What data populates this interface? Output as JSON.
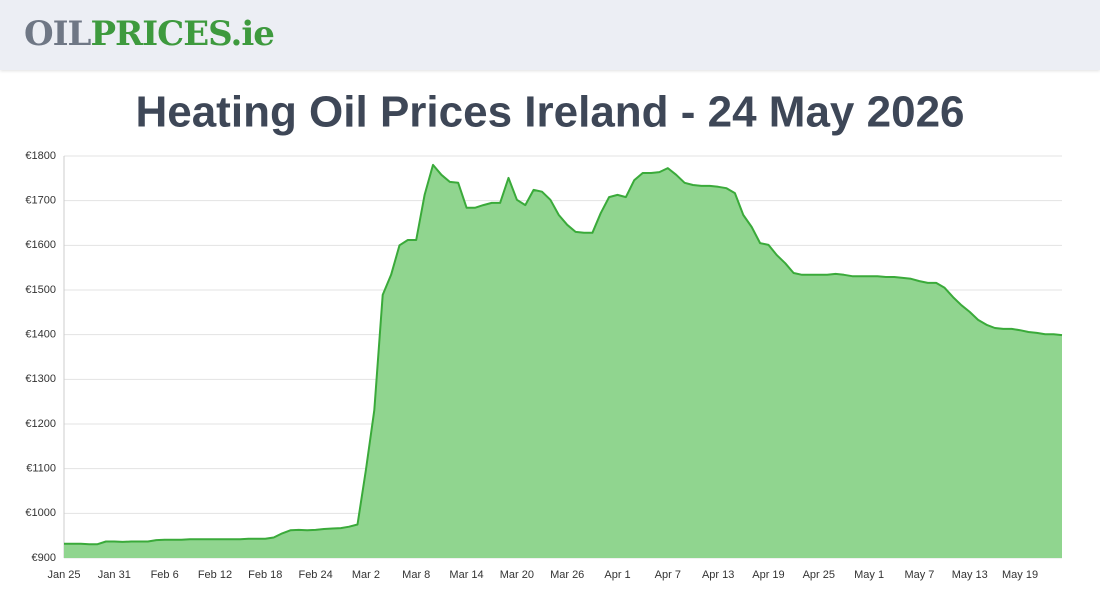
{
  "header": {
    "logo": [
      "OIL",
      "PRICES.ie"
    ]
  },
  "chart_data": {
    "type": "area",
    "title": "Heating Oil Prices Ireland - 24 May 2026",
    "categories": [
      "Jan 25",
      null,
      null,
      null,
      null,
      null,
      "Jan 31",
      null,
      null,
      null,
      null,
      null,
      "Feb 6",
      null,
      null,
      null,
      null,
      null,
      "Feb 12",
      null,
      null,
      null,
      null,
      null,
      "Feb 18",
      null,
      null,
      null,
      null,
      null,
      "Feb 24",
      null,
      null,
      null,
      null,
      null,
      "Mar 2",
      null,
      null,
      null,
      null,
      null,
      "Mar 8",
      null,
      null,
      null,
      null,
      null,
      "Mar 14",
      null,
      null,
      null,
      null,
      null,
      "Mar 20",
      null,
      null,
      null,
      null,
      null,
      "Mar 26",
      null,
      null,
      null,
      null,
      null,
      "Apr 1",
      null,
      null,
      null,
      null,
      null,
      "Apr 7",
      null,
      null,
      null,
      null,
      null,
      "Apr 13",
      null,
      null,
      null,
      null,
      null,
      "Apr 19",
      null,
      null,
      null,
      null,
      null,
      "Apr 25",
      null,
      null,
      null,
      null,
      null,
      "May 1",
      null,
      null,
      null,
      null,
      null,
      "May 7",
      null,
      null,
      null,
      null,
      null,
      "May 13",
      null,
      null,
      null,
      null,
      null,
      "May 19",
      null,
      null,
      null,
      null,
      null
    ],
    "values": [
      932,
      932,
      932,
      931,
      931,
      937,
      937,
      936,
      937,
      937,
      937,
      940,
      941,
      941,
      941,
      942,
      942,
      942,
      942,
      942,
      942,
      942,
      943,
      943,
      943,
      946,
      955,
      962,
      963,
      962,
      963,
      965,
      966,
      967,
      970,
      975,
      1097,
      1231,
      1489,
      1534,
      1600,
      1612,
      1612,
      1713,
      1780,
      1758,
      1742,
      1740,
      1684,
      1684,
      1690,
      1695,
      1695,
      1751,
      1702,
      1690,
      1724,
      1720,
      1702,
      1668,
      1646,
      1630,
      1628,
      1628,
      1672,
      1708,
      1713,
      1708,
      1746,
      1762,
      1762,
      1764,
      1773,
      1758,
      1740,
      1735,
      1733,
      1733,
      1731,
      1728,
      1717,
      1668,
      1641,
      1605,
      1601,
      1578,
      1560,
      1538,
      1534,
      1534,
      1534,
      1534,
      1536,
      1534,
      1531,
      1531,
      1531,
      1531,
      1529,
      1529,
      1527,
      1525,
      1520,
      1516,
      1516,
      1505,
      1484,
      1466,
      1451,
      1433,
      1422,
      1415,
      1413,
      1413,
      1410,
      1406,
      1404,
      1401,
      1401,
      1399
    ],
    "color": "#3aaa3a",
    "fill": "#90d58f",
    "ylim": [
      900,
      1800
    ],
    "yticks": [
      {
        "value": 900,
        "label": "€900"
      },
      {
        "value": 1000,
        "label": "€1000"
      },
      {
        "value": 1100,
        "label": "€1100"
      },
      {
        "value": 1200,
        "label": "€1200"
      },
      {
        "value": 1300,
        "label": "€1300"
      },
      {
        "value": 1400,
        "label": "€1400"
      },
      {
        "value": 1500,
        "label": "€1500"
      },
      {
        "value": 1600,
        "label": "€1600"
      },
      {
        "value": 1700,
        "label": "€1700"
      },
      {
        "value": 1800,
        "label": "€1800"
      }
    ],
    "grid": true
  }
}
